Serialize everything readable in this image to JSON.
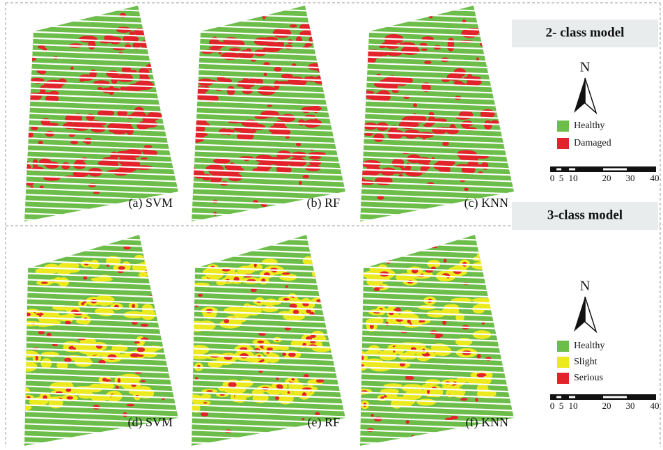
{
  "panels": [
    {
      "title": "2- class model",
      "maps": [
        "(a) SVM",
        "(b) RF",
        "(c) KNN"
      ],
      "north": "N",
      "legend": [
        {
          "label": "Healthy",
          "color": "#6cbd4a"
        },
        {
          "label": "Damaged",
          "color": "#e3232b"
        }
      ],
      "scale": [
        "0",
        "5",
        "10",
        "20",
        "30",
        "40"
      ]
    },
    {
      "title": "3-class model",
      "maps": [
        "(d) SVM",
        "(e) RF",
        "(f) KNN"
      ],
      "north": "N",
      "legend": [
        {
          "label": "Healthy",
          "color": "#6cbd4a"
        },
        {
          "label": "Slight",
          "color": "#ecea1e"
        },
        {
          "label": "Serious",
          "color": "#e3232b"
        }
      ],
      "scale": [
        "0",
        "5",
        "10",
        "20",
        "30",
        "40"
      ]
    }
  ]
}
